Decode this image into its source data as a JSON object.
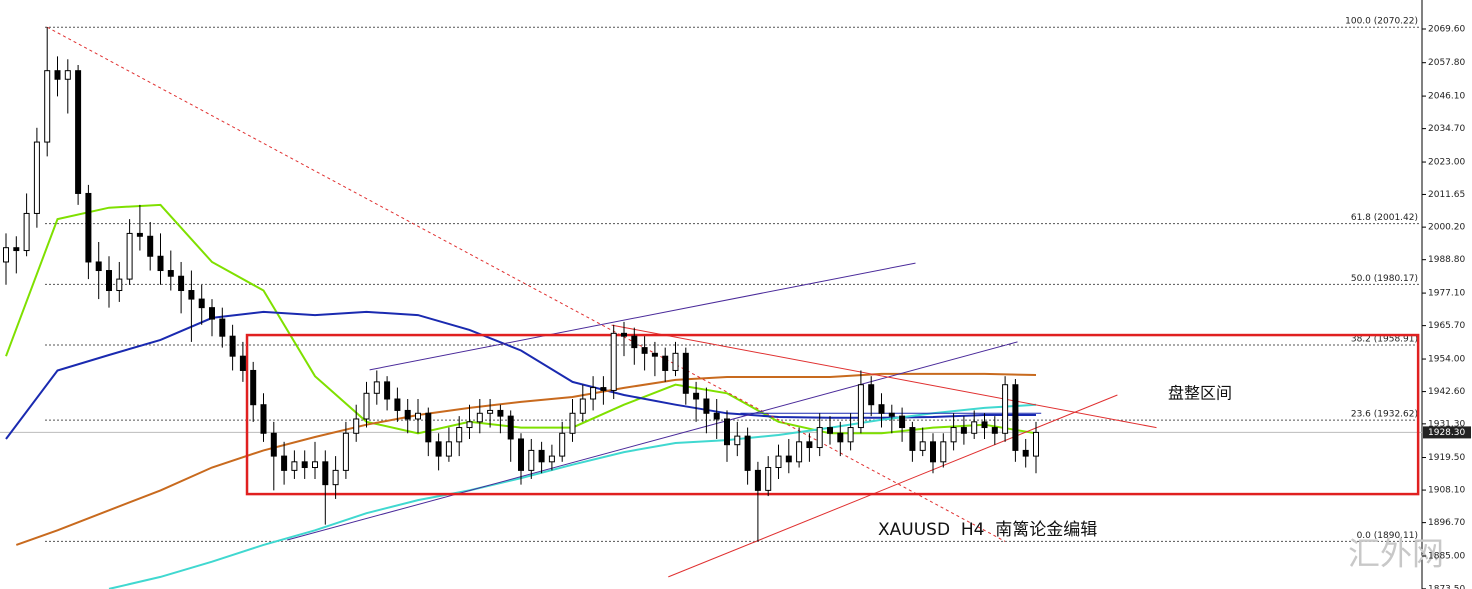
{
  "chart_data": {
    "type": "candlestick",
    "ylim": [
      1873.45,
      2079.76
    ],
    "yticks": [
      {
        "value": 2069.6,
        "label": "2069.60"
      },
      {
        "value": 2057.8,
        "label": "2057.80"
      },
      {
        "value": 2046.1,
        "label": "2046.10"
      },
      {
        "value": 2034.7,
        "label": "2034.70"
      },
      {
        "value": 2023.0,
        "label": "2023.00"
      },
      {
        "value": 2011.65,
        "label": "2011.65"
      },
      {
        "value": 2000.2,
        "label": "2000.20"
      },
      {
        "value": 1988.8,
        "label": "1988.80"
      },
      {
        "value": 1977.1,
        "label": "1977.10"
      },
      {
        "value": 1965.7,
        "label": "1965.70"
      },
      {
        "value": 1954.0,
        "label": "1954.00"
      },
      {
        "value": 1942.6,
        "label": "1942.60"
      },
      {
        "value": 1931.3,
        "label": "1931.30"
      },
      {
        "value": 1919.5,
        "label": "1919.50"
      },
      {
        "value": 1908.1,
        "label": "1908.10"
      },
      {
        "value": 1896.7,
        "label": "1896.70"
      },
      {
        "value": 1885.0,
        "label": "1885.00"
      },
      {
        "value": 1873.5,
        "label": "1873.50"
      }
    ],
    "open": [
      1988,
      1993,
      1992,
      2005,
      2030,
      2055,
      2052,
      2055,
      2012,
      1988,
      1985,
      1978,
      1982,
      1998,
      1997,
      1990,
      1985,
      1983,
      1978,
      1975,
      1972,
      1968,
      1962,
      1955,
      1950,
      1938,
      1928,
      1920,
      1915,
      1918,
      1916,
      1918,
      1910,
      1915,
      1928,
      1933,
      1942,
      1946,
      1940,
      1936,
      1933,
      1935,
      1925,
      1920,
      1925,
      1930,
      1932,
      1935,
      1936,
      1934,
      1926,
      1915,
      1922,
      1918,
      1920,
      1928,
      1935,
      1940,
      1944,
      1943,
      1963,
      1962,
      1958,
      1956,
      1955,
      1950,
      1956,
      1942,
      1940,
      1935,
      1933,
      1924,
      1927,
      1915,
      1908,
      1916,
      1920,
      1918,
      1925,
      1923,
      1930,
      1928,
      1925,
      1930,
      1945,
      1938,
      1935,
      1934,
      1930,
      1922,
      1925,
      1918,
      1925,
      1930,
      1928,
      1932,
      1930,
      1928,
      1945,
      1922,
      1920
    ],
    "high": [
      1998,
      1997,
      2012,
      2035,
      2070.22,
      2060,
      2059,
      2057,
      2015,
      1995,
      1990,
      1988,
      2003,
      2008,
      2002,
      1998,
      1992,
      1988,
      1985,
      1980,
      1975,
      1972,
      1966,
      1960,
      1953,
      1942,
      1932,
      1925,
      1922,
      1922,
      1925,
      1922,
      1920,
      1932,
      1938,
      1946,
      1950,
      1948,
      1944,
      1940,
      1940,
      1937,
      1928,
      1930,
      1934,
      1938,
      1940,
      1940,
      1938,
      1936,
      1928,
      1926,
      1925,
      1924,
      1932,
      1940,
      1945,
      1948,
      1948,
      1966,
      1967,
      1965,
      1962,
      1960,
      1958,
      1960,
      1958,
      1946,
      1944,
      1940,
      1936,
      1932,
      1930,
      1918,
      1920,
      1924,
      1926,
      1930,
      1928,
      1935,
      1934,
      1932,
      1935,
      1950,
      1948,
      1942,
      1938,
      1937,
      1932,
      1930,
      1928,
      1928,
      1935,
      1934,
      1936,
      1935,
      1934,
      1948,
      1947,
      1926,
      1932
    ],
    "low": [
      1980,
      1984,
      1990,
      2000,
      2025,
      2046,
      2040,
      2008,
      1982,
      1975,
      1972,
      1974,
      1980,
      1992,
      1985,
      1980,
      1978,
      1970,
      1960,
      1966,
      1962,
      1958,
      1950,
      1946,
      1932,
      1925,
      1908,
      1910,
      1912,
      1912,
      1912,
      1896,
      1905,
      1912,
      1925,
      1930,
      1938,
      1936,
      1932,
      1928,
      1928,
      1920,
      1915,
      1918,
      1920,
      1926,
      1928,
      1930,
      1928,
      1918,
      1910,
      1912,
      1914,
      1915,
      1918,
      1925,
      1932,
      1936,
      1938,
      1940,
      1955,
      1952,
      1950,
      1948,
      1946,
      1948,
      1938,
      1932,
      1928,
      1926,
      1918,
      1920,
      1910,
      1890.11,
      1906,
      1912,
      1914,
      1916,
      1918,
      1920,
      1924,
      1920,
      1922,
      1928,
      1934,
      1930,
      1928,
      1925,
      1918,
      1920,
      1914,
      1916,
      1922,
      1924,
      1926,
      1926,
      1924,
      1925,
      1918,
      1916,
      1914
    ],
    "close": [
      1993,
      1992,
      2005,
      2030,
      2055,
      2052,
      2055,
      2012,
      1988,
      1985,
      1978,
      1982,
      1998,
      1997,
      1990,
      1985,
      1983,
      1978,
      1975,
      1972,
      1968,
      1962,
      1955,
      1950,
      1938,
      1928,
      1920,
      1915,
      1918,
      1916,
      1918,
      1910,
      1915,
      1928,
      1933,
      1942,
      1946,
      1940,
      1936,
      1933,
      1935,
      1925,
      1920,
      1925,
      1930,
      1932,
      1935,
      1936,
      1934,
      1926,
      1915,
      1922,
      1918,
      1920,
      1928,
      1935,
      1940,
      1944,
      1943,
      1963,
      1962,
      1958,
      1956,
      1955,
      1950,
      1956,
      1942,
      1940,
      1935,
      1933,
      1924,
      1927,
      1915,
      1908,
      1916,
      1920,
      1918,
      1925,
      1923,
      1930,
      1928,
      1925,
      1930,
      1945,
      1938,
      1935,
      1934,
      1930,
      1922,
      1925,
      1918,
      1925,
      1930,
      1928,
      1932,
      1930,
      1928,
      1945,
      1922,
      1920,
      1928.3
    ],
    "series": [
      {
        "color": "#7fe000",
        "x": [
          0,
          5,
          10,
          15,
          20,
          25,
          30,
          35,
          40,
          45,
          50,
          55,
          60,
          65,
          70,
          75,
          80,
          85,
          90,
          95,
          100
        ],
        "values": [
          1955,
          2003,
          2007,
          2008,
          1988,
          1978,
          1948,
          1932,
          1928,
          1932,
          1930,
          1930,
          1938,
          1945,
          1942,
          1932,
          1928,
          1928,
          1930,
          1931,
          1928
        ]
      },
      {
        "color": "#1a2ab0",
        "x": [
          0,
          5,
          10,
          15,
          20,
          25,
          30,
          35,
          40,
          45,
          50,
          55,
          60,
          65,
          70,
          75,
          80,
          85,
          90,
          95,
          100
        ],
        "values": [
          1926,
          1950,
          1955.4,
          1960.7,
          1968.4,
          1970.5,
          1969.4,
          1970.5,
          1969.4,
          1964.2,
          1957,
          1946,
          1941.4,
          1938,
          1935,
          1933.7,
          1933.4,
          1933.4,
          1933.7,
          1934.4,
          1934.4
        ]
      },
      {
        "color": "#c86a1e",
        "x": [
          1,
          5,
          10,
          15,
          20,
          25,
          30,
          35,
          40,
          45,
          50,
          55,
          60,
          65,
          70,
          75,
          80,
          85,
          90,
          95,
          100
        ],
        "values": [
          1888.9,
          1894,
          1901,
          1908,
          1916,
          1922,
          1926.7,
          1931,
          1934.4,
          1936.9,
          1939,
          1940.7,
          1943.9,
          1946.7,
          1947.7,
          1947.7,
          1947.7,
          1948.8,
          1948.8,
          1948.8,
          1948.4
        ]
      },
      {
        "color": "#40d8d0",
        "x": [
          10,
          15,
          20,
          25,
          30,
          35,
          40,
          45,
          50,
          55,
          60,
          65,
          70,
          75,
          80,
          85,
          90,
          95,
          100
        ],
        "values": [
          1873.5,
          1877.7,
          1883,
          1888.9,
          1894,
          1900,
          1904.6,
          1908,
          1912.3,
          1917,
          1921.4,
          1924.6,
          1925.6,
          1927.4,
          1929.9,
          1932.7,
          1935,
          1936.9,
          1938
        ]
      }
    ],
    "trendlines": [
      {
        "color": "#e03030",
        "dash": true,
        "x": [
          4,
          97
        ],
        "values": [
          2070.22,
          1890.11
        ]
      },
      {
        "color": "#4a2a9a",
        "x": [
          35.3,
          88.3
        ],
        "values": [
          1950.2,
          1987.6
        ]
      },
      {
        "color": "#4a2a9a",
        "x": [
          27.3,
          98.2
        ],
        "values": [
          1890.6,
          1960
        ]
      },
      {
        "color": "#e03030",
        "x": [
          58.8,
          111.7
        ],
        "values": [
          1965.9,
          1930
        ]
      },
      {
        "color": "#e03030",
        "x": [
          64.3,
          107.9
        ],
        "values": [
          1877.7,
          1941.4
        ]
      },
      {
        "color": "#1a2ab0",
        "x": [
          71.3,
          100.5
        ],
        "values": [
          1935,
          1935
        ]
      }
    ],
    "rectangle": {
      "color": "#e02020",
      "x": [
        23.4,
        137.1
      ],
      "values": [
        1962.4,
        1906.7
      ]
    },
    "fib_levels": [
      {
        "value": 2070.22,
        "label": "100.0 (2070.22)"
      },
      {
        "value": 2001.42,
        "label": "61.8 (2001.42)"
      },
      {
        "value": 1980.17,
        "label": "50.0 (1980.17)"
      },
      {
        "value": 1958.91,
        "label": "38.2 (1958.91)"
      },
      {
        "value": 1932.62,
        "label": "23.6 (1932.62)"
      },
      {
        "value": 1890.11,
        "label": "0.0 (1890.11)"
      }
    ],
    "current_price": {
      "value": 1928.3,
      "label": "1928.30"
    },
    "annotations": [
      "盘整区间",
      "XAUUSD  H4  南篱论金编辑"
    ],
    "watermark": "汇外网"
  }
}
